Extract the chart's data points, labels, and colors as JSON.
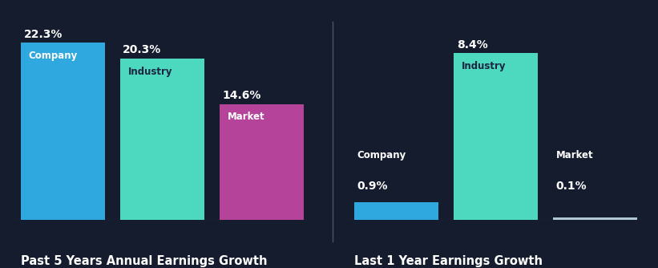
{
  "background_color": "#151c2e",
  "groups": [
    {
      "title": "Past 5 Years Annual Earnings Growth",
      "bars": [
        {
          "label": "Company",
          "value": 22.3,
          "color": "#2fa8e0"
        },
        {
          "label": "Industry",
          "value": 20.3,
          "color": "#4dd9c0"
        },
        {
          "label": "Market",
          "value": 14.6,
          "color": "#b5439a"
        }
      ],
      "ylim": 25
    },
    {
      "title": "Last 1 Year Earnings Growth",
      "bars": [
        {
          "label": "Company",
          "value": 0.9,
          "color": "#2fa8e0"
        },
        {
          "label": "Industry",
          "value": 8.4,
          "color": "#4dd9c0"
        },
        {
          "label": "Market",
          "value": 0.1,
          "color": "#b0c8d4"
        }
      ],
      "ylim": 10
    }
  ],
  "bar_width": 0.85,
  "label_fontsize": 8.5,
  "value_fontsize": 10,
  "title_fontsize": 10.5,
  "text_color": "#ffffff",
  "dark_text_color": "#1a2540",
  "title_color": "#ffffff",
  "separator_color": "#ffffff",
  "separator_alpha": 0.25
}
